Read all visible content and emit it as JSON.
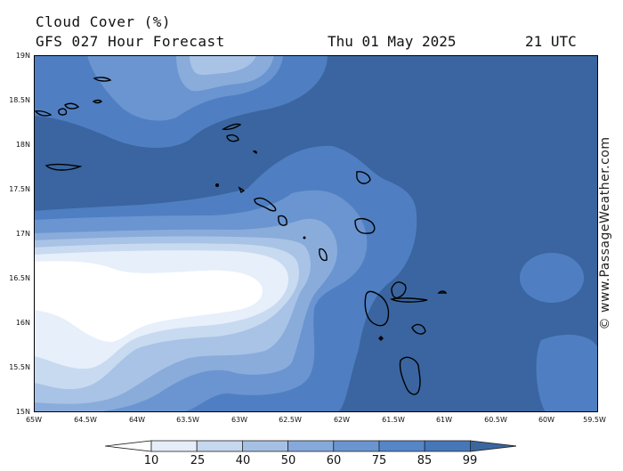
{
  "title": {
    "line1": "Cloud Cover (%)",
    "line2": "GFS 027 Hour Forecast",
    "date": "Thu 01 May 2025",
    "time": "21 UTC"
  },
  "map": {
    "lat_labels": [
      "19N",
      "18.5N",
      "18N",
      "17.5N",
      "17N",
      "16.5N",
      "16N",
      "15.5N",
      "15N"
    ],
    "lon_labels": [
      "65W",
      "64.5W",
      "64W",
      "63.5W",
      "63W",
      "62.5W",
      "62W",
      "61.5W",
      "61W",
      "60.5W",
      "60W",
      "59.5W"
    ]
  },
  "legend": {
    "labels": [
      "10",
      "25",
      "40",
      "50",
      "60",
      "75",
      "85",
      "99"
    ],
    "colors": [
      "#ffffff",
      "#e5eef8",
      "#c6d8ee",
      "#a5c0e3",
      "#85a9da",
      "#6a95d0",
      "#5586c8",
      "#4677b9",
      "#3a67a0"
    ]
  },
  "watermark": "© www.PassageWeather.com",
  "colors": {
    "c99": "#3a65a0",
    "c85": "#4f7fc2",
    "c75": "#6a95d0",
    "c60": "#8aacdb",
    "c50": "#a8c3e5",
    "c40": "#c8daf0",
    "c25": "#e6effa",
    "c10": "#ffffff",
    "coast": "#000000"
  }
}
